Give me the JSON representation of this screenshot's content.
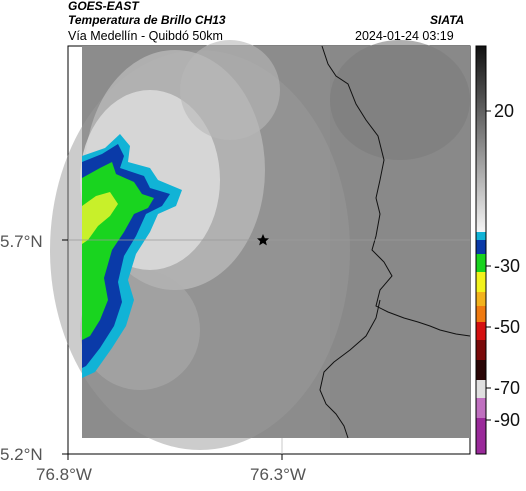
{
  "header": {
    "product": "GOES-EAST",
    "title": "Temperatura de Brillo CH13",
    "source": "SIATA",
    "subtitle": "Vía Medellín - Quibdó 50km",
    "timestamp": "2024-01-24 03:19"
  },
  "axes": {
    "y_ticks": [
      "5.7°N",
      "5.2°N"
    ],
    "x_ticks": [
      "76.8°W",
      "76.3°W"
    ]
  },
  "colorbar": {
    "ticks": [
      "20",
      "-30",
      "-50",
      "-70",
      "-90"
    ],
    "colors": {
      "cyan": "#11b3d6",
      "blue": "#0a3aa8",
      "green": "#19d41f",
      "yellow": "#f2f21c",
      "orange": "#ef7a10",
      "red": "#d41010",
      "dark_red": "#5a0a0a",
      "magenta": "#b040b0"
    }
  },
  "map": {
    "marker_icon": "star-icon",
    "background": "#8a8a8a"
  }
}
